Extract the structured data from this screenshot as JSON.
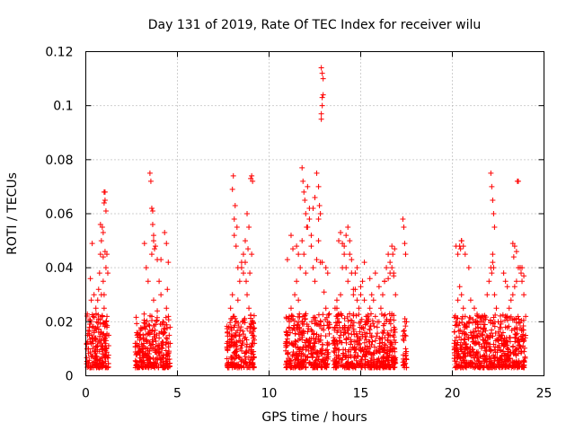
{
  "chart_data": {
    "type": "scatter",
    "title": "Day 131 of 2019, Rate Of TEC Index for receiver wilu",
    "xlabel": "GPS time / hours",
    "ylabel": "ROTI / TECUs",
    "xlim": [
      0,
      25
    ],
    "ylim": [
      0,
      0.12
    ],
    "xticks": [
      0,
      5,
      10,
      15,
      20,
      25
    ],
    "xtick_labels": [
      "0",
      "5",
      "10",
      "15",
      "20",
      "25"
    ],
    "yticks": [
      0,
      0.02,
      0.04,
      0.06,
      0.08,
      0.1,
      0.12
    ],
    "ytick_labels": [
      "0",
      "0.02",
      "0.04",
      "0.06",
      "0.08",
      "0.1",
      "0.12"
    ],
    "grid": true,
    "marker": "+",
    "color": "#ff0000",
    "series": [
      {
        "name": "ROTI",
        "x": [
          0.05,
          0.1,
          0.15,
          0.2,
          0.25,
          0.3,
          0.3,
          0.35,
          0.35,
          0.4,
          0.4,
          0.45,
          0.5,
          0.55,
          0.6,
          0.65,
          0.7,
          0.75,
          0.8,
          0.8,
          0.85,
          0.85,
          0.9,
          0.9,
          0.95,
          0.95,
          1.0,
          1.0,
          1.05,
          1.05,
          1.1,
          1.1,
          1.15,
          1.15,
          1.2,
          1.25,
          0.45,
          0.55,
          0.65,
          0.95,
          1.0,
          1.05,
          1.0,
          1.1,
          1.05,
          0.85,
          0.75,
          0.9,
          0.95,
          1.1,
          2.7,
          2.8,
          2.9,
          3.0,
          3.1,
          3.2,
          3.3,
          3.4,
          3.5,
          3.6,
          3.7,
          3.8,
          3.9,
          4.0,
          4.1,
          4.2,
          4.3,
          4.4,
          4.5,
          4.6,
          3.5,
          3.55,
          3.6,
          3.65,
          3.7,
          3.75,
          3.3,
          3.2,
          3.4,
          4.0,
          4.1,
          4.3,
          4.4,
          4.5,
          4.45,
          3.8,
          3.9,
          3.65,
          3.7,
          3.6,
          4.55,
          4.6,
          7.7,
          7.8,
          7.9,
          8.0,
          8.1,
          8.2,
          8.3,
          8.4,
          8.5,
          8.6,
          8.7,
          8.8,
          8.9,
          9.0,
          9.1,
          9.2,
          8.0,
          8.05,
          8.1,
          8.1,
          8.2,
          8.3,
          8.5,
          8.6,
          8.7,
          8.8,
          8.9,
          9.0,
          9.05,
          9.1,
          9.05,
          8.95,
          8.85,
          8.75,
          8.15,
          8.25,
          10.9,
          11.0,
          11.1,
          11.2,
          11.3,
          11.4,
          11.5,
          11.6,
          11.7,
          11.8,
          11.9,
          12.0,
          12.1,
          12.2,
          12.3,
          12.4,
          12.5,
          12.6,
          12.7,
          12.8,
          12.9,
          13.0,
          13.1,
          13.2,
          13.3,
          11.8,
          11.85,
          11.9,
          11.95,
          12.0,
          12.05,
          12.1,
          12.2,
          12.3,
          12.4,
          12.5,
          12.6,
          12.7,
          12.8,
          12.85,
          12.9,
          12.95,
          12.85,
          12.9,
          12.95,
          12.85,
          12.9,
          11.2,
          11.3,
          11.0,
          11.5,
          11.6,
          12.75,
          12.7,
          13.1,
          13.2,
          13.5,
          13.6,
          13.7,
          13.8,
          13.9,
          14.0,
          14.1,
          14.2,
          14.3,
          14.4,
          14.5,
          14.6,
          14.7,
          14.8,
          14.9,
          15.0,
          15.1,
          15.2,
          15.3,
          15.4,
          15.5,
          15.6,
          15.7,
          15.8,
          15.9,
          16.0,
          16.1,
          16.2,
          16.3,
          16.4,
          16.5,
          16.6,
          16.7,
          16.8,
          16.9,
          13.8,
          13.9,
          14.0,
          14.1,
          14.2,
          14.3,
          14.5,
          14.7,
          15.0,
          15.2,
          15.5,
          15.8,
          16.0,
          16.3,
          16.5,
          16.6,
          16.7,
          16.75,
          16.8,
          16.85,
          14.4,
          14.6,
          14.8,
          13.7,
          13.6,
          17.3,
          17.35,
          17.4,
          17.45,
          17.5,
          17.4,
          17.45,
          17.5,
          20.1,
          20.2,
          20.3,
          20.4,
          20.5,
          20.6,
          20.7,
          20.8,
          20.9,
          21.0,
          21.1,
          21.2,
          21.3,
          21.4,
          21.5,
          21.6,
          21.7,
          21.8,
          21.9,
          22.0,
          22.1,
          22.2,
          22.3,
          22.4,
          22.5,
          22.6,
          22.7,
          22.8,
          22.9,
          23.0,
          23.1,
          23.2,
          23.3,
          23.4,
          23.5,
          23.6,
          23.7,
          23.8,
          23.9,
          24.0,
          20.2,
          20.3,
          20.5,
          20.6,
          20.7,
          20.9,
          22.1,
          22.15,
          22.2,
          22.25,
          22.3,
          22.2,
          22.25,
          22.15,
          23.3,
          23.35,
          23.4,
          23.5,
          23.55,
          23.6,
          23.7,
          23.75,
          23.8,
          23.9,
          22.8,
          22.9,
          23.0,
          21.0,
          21.2,
          21.4,
          21.6,
          20.4,
          20.45,
          20.5
        ],
        "y": [
          0.012,
          0.015,
          0.01,
          0.018,
          0.036,
          0.028,
          0.02,
          0.049,
          0.014,
          0.022,
          0.012,
          0.016,
          0.009,
          0.014,
          0.02,
          0.028,
          0.032,
          0.038,
          0.045,
          0.056,
          0.05,
          0.03,
          0.055,
          0.022,
          0.053,
          0.035,
          0.068,
          0.025,
          0.065,
          0.046,
          0.061,
          0.04,
          0.045,
          0.018,
          0.038,
          0.015,
          0.03,
          0.025,
          0.011,
          0.044,
          0.064,
          0.068,
          0.03,
          0.02,
          0.012,
          0.016,
          0.009,
          0.01,
          0.008,
          0.013,
          0.012,
          0.015,
          0.009,
          0.014,
          0.011,
          0.018,
          0.013,
          0.01,
          0.016,
          0.022,
          0.028,
          0.019,
          0.024,
          0.014,
          0.03,
          0.02,
          0.016,
          0.025,
          0.012,
          0.018,
          0.075,
          0.072,
          0.062,
          0.056,
          0.05,
          0.047,
          0.04,
          0.049,
          0.035,
          0.035,
          0.043,
          0.053,
          0.049,
          0.042,
          0.032,
          0.048,
          0.043,
          0.061,
          0.052,
          0.045,
          0.015,
          0.012,
          0.012,
          0.018,
          0.025,
          0.03,
          0.022,
          0.02,
          0.028,
          0.035,
          0.04,
          0.045,
          0.042,
          0.03,
          0.025,
          0.018,
          0.015,
          0.012,
          0.069,
          0.074,
          0.058,
          0.052,
          0.048,
          0.04,
          0.042,
          0.038,
          0.05,
          0.06,
          0.055,
          0.073,
          0.074,
          0.072,
          0.045,
          0.038,
          0.047,
          0.035,
          0.063,
          0.055,
          0.012,
          0.015,
          0.018,
          0.025,
          0.022,
          0.03,
          0.035,
          0.028,
          0.04,
          0.05,
          0.045,
          0.038,
          0.055,
          0.062,
          0.048,
          0.04,
          0.035,
          0.043,
          0.05,
          0.06,
          0.042,
          0.031,
          0.025,
          0.02,
          0.018,
          0.077,
          0.072,
          0.068,
          0.065,
          0.06,
          0.055,
          0.07,
          0.058,
          0.052,
          0.062,
          0.066,
          0.075,
          0.058,
          0.042,
          0.097,
          0.1,
          0.104,
          0.114,
          0.112,
          0.11,
          0.095,
          0.103,
          0.052,
          0.047,
          0.043,
          0.048,
          0.045,
          0.063,
          0.07,
          0.04,
          0.038,
          0.012,
          0.018,
          0.025,
          0.05,
          0.053,
          0.049,
          0.045,
          0.04,
          0.035,
          0.045,
          0.038,
          0.03,
          0.032,
          0.028,
          0.025,
          0.03,
          0.035,
          0.028,
          0.022,
          0.02,
          0.025,
          0.03,
          0.028,
          0.022,
          0.018,
          0.02,
          0.025,
          0.03,
          0.035,
          0.04,
          0.045,
          0.042,
          0.048,
          0.038,
          0.03,
          0.02,
          0.03,
          0.04,
          0.048,
          0.052,
          0.055,
          0.043,
          0.038,
          0.033,
          0.042,
          0.036,
          0.038,
          0.033,
          0.035,
          0.036,
          0.038,
          0.04,
          0.045,
          0.037,
          0.047,
          0.05,
          0.032,
          0.04,
          0.028,
          0.025,
          0.058,
          0.055,
          0.049,
          0.045,
          0.02,
          0.015,
          0.01,
          0.006,
          0.012,
          0.02,
          0.028,
          0.033,
          0.03,
          0.025,
          0.022,
          0.018,
          0.02,
          0.016,
          0.014,
          0.012,
          0.015,
          0.018,
          0.02,
          0.022,
          0.019,
          0.021,
          0.03,
          0.035,
          0.04,
          0.042,
          0.03,
          0.025,
          0.02,
          0.018,
          0.015,
          0.013,
          0.018,
          0.022,
          0.025,
          0.028,
          0.03,
          0.033,
          0.035,
          0.04,
          0.04,
          0.035,
          0.03,
          0.022,
          0.048,
          0.045,
          0.05,
          0.048,
          0.045,
          0.04,
          0.075,
          0.07,
          0.065,
          0.06,
          0.055,
          0.045,
          0.04,
          0.038,
          0.049,
          0.044,
          0.048,
          0.046,
          0.072,
          0.072,
          0.04,
          0.038,
          0.04,
          0.037,
          0.038,
          0.035,
          0.033,
          0.028,
          0.025,
          0.022,
          0.02,
          0.048,
          0.047,
          0.05
        ]
      }
    ]
  }
}
